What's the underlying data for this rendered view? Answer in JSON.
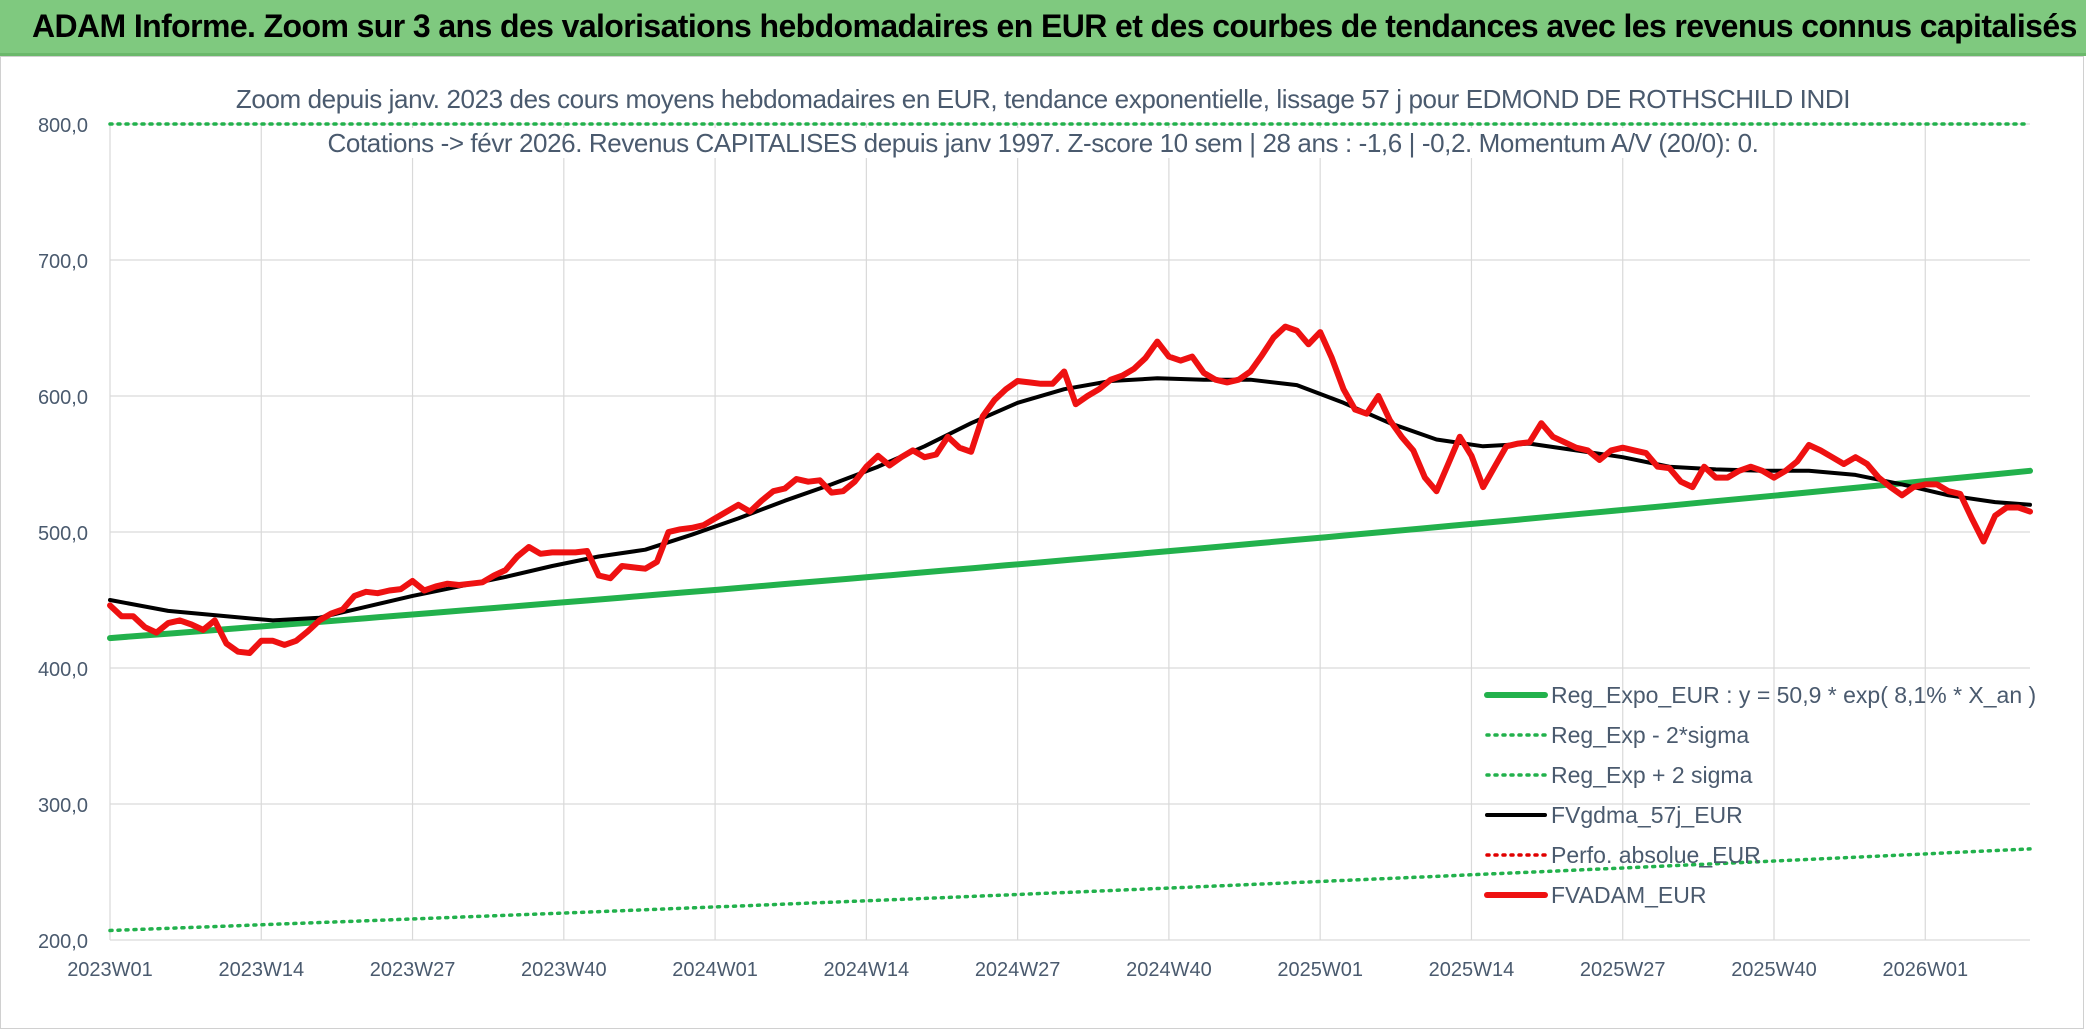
{
  "banner": {
    "title": "ADAM Informe. Zoom sur 3 ans des valorisations hebdomadaires en EUR et des courbes de tendances avec les revenus connus capitalisés",
    "color": "#7fc97f"
  },
  "chart_data": {
    "type": "line",
    "title": "Zoom depuis janv. 2023 des cours moyens hebdomadaires en EUR, tendance exponentielle, lissage 57 j pour EDMOND DE ROTHSCHILD INDI",
    "subtitle": "Cotations -> févr 2026. Revenus CAPITALISES depuis janv 1997. Z-score 10 sem | 28 ans : -1,6 | -0,2. Momentum A/V (20/0): 0.",
    "xlabel": "",
    "ylabel": "",
    "ylim": [
      200,
      800
    ],
    "yticks": [
      "200,0",
      "300,0",
      "400,0",
      "500,0",
      "600,0",
      "700,0",
      "800,0"
    ],
    "xticks": [
      "2023W01",
      "2023W14",
      "2023W27",
      "2023W40",
      "2024W01",
      "2024W14",
      "2024W27",
      "2024W40",
      "2025W01",
      "2025W14",
      "2025W27",
      "2025W40",
      "2026W01"
    ],
    "x_range_weeks": [
      0,
      165
    ],
    "grid": true,
    "legend_position": "bottom-right",
    "series": [
      {
        "name": "Reg_Expo_EUR : y = 50,9 * exp( 8,1% *  X_an )",
        "style": "solid-thick",
        "color": "#22b14c",
        "x": [
          0,
          165
        ],
        "y_start": 422,
        "y_end": 545,
        "kind": "exp"
      },
      {
        "name": "Reg_Exp - 2*sigma",
        "style": "dotted",
        "color": "#22b14c",
        "x": [
          0,
          165
        ],
        "y_start": 207,
        "y_end": 267,
        "kind": "exp"
      },
      {
        "name": "Reg_Exp + 2 sigma",
        "style": "dotted",
        "color": "#22b14c",
        "x": [
          0,
          165
        ],
        "y_start": 800,
        "y_end": 800,
        "kind": "offscale"
      },
      {
        "name": "FVgdma_57j_EUR",
        "style": "solid",
        "color": "#000000",
        "x": [
          0,
          5,
          10,
          14,
          18,
          22,
          26,
          30,
          34,
          38,
          42,
          46,
          50,
          54,
          58,
          62,
          66,
          70,
          74,
          78,
          82,
          86,
          90,
          94,
          98,
          102,
          106,
          110,
          114,
          118,
          122,
          126,
          130,
          134,
          138,
          142,
          146,
          150,
          154,
          158,
          162,
          165
        ],
        "y": [
          450,
          442,
          438,
          435,
          437,
          445,
          453,
          460,
          467,
          475,
          482,
          487,
          498,
          510,
          523,
          535,
          548,
          563,
          580,
          595,
          605,
          611,
          613,
          612,
          612,
          608,
          595,
          580,
          568,
          563,
          565,
          560,
          555,
          548,
          546,
          545,
          545,
          542,
          535,
          527,
          522,
          520
        ]
      },
      {
        "name": "Perfo. absolue_EUR",
        "style": "dotted",
        "color": "#e00000",
        "x": [],
        "y": []
      },
      {
        "name": "FVADAM_EUR",
        "style": "solid-thick",
        "color": "#ee1111",
        "x": [
          0,
          1,
          2,
          3,
          4,
          5,
          6,
          7,
          8,
          9,
          10,
          11,
          12,
          13,
          14,
          15,
          16,
          17,
          18,
          19,
          20,
          21,
          22,
          23,
          24,
          25,
          26,
          27,
          28,
          29,
          30,
          31,
          32,
          33,
          34,
          35,
          36,
          37,
          38,
          39,
          40,
          41,
          42,
          43,
          44,
          45,
          46,
          47,
          48,
          49,
          50,
          51,
          52,
          53,
          54,
          55,
          56,
          57,
          58,
          59,
          60,
          61,
          62,
          63,
          64,
          65,
          66,
          67,
          68,
          69,
          70,
          71,
          72,
          73,
          74,
          75,
          76,
          77,
          78,
          79,
          80,
          81,
          82,
          83,
          84,
          85,
          86,
          87,
          88,
          89,
          90,
          91,
          92,
          93,
          94,
          95,
          96,
          97,
          98,
          99,
          100,
          101,
          102,
          103,
          104,
          105,
          106,
          107,
          108,
          109,
          110,
          111,
          112,
          113,
          114,
          115,
          116,
          117,
          118,
          119,
          120,
          121,
          122,
          123,
          124,
          125,
          126,
          127,
          128,
          129,
          130,
          131,
          132,
          133,
          134,
          135,
          136,
          137,
          138,
          139,
          140,
          141,
          142,
          143,
          144,
          145,
          146,
          147,
          148,
          149,
          150,
          151,
          152,
          153,
          154,
          155,
          156,
          157,
          158,
          159,
          160,
          161,
          162,
          163,
          164,
          165
        ],
        "y": [
          446,
          438,
          438,
          430,
          426,
          433,
          435,
          432,
          428,
          435,
          418,
          412,
          411,
          420,
          420,
          417,
          420,
          427,
          435,
          440,
          443,
          453,
          456,
          455,
          457,
          458,
          464,
          457,
          460,
          462,
          461,
          462,
          463,
          468,
          472,
          482,
          489,
          484,
          485,
          485,
          485,
          486,
          468,
          466,
          475,
          474,
          473,
          478,
          500,
          502,
          503,
          505,
          510,
          515,
          520,
          515,
          523,
          530,
          532,
          539,
          537,
          538,
          529,
          530,
          537,
          548,
          556,
          549,
          555,
          560,
          555,
          557,
          570,
          562,
          559,
          585,
          597,
          605,
          611,
          610,
          609,
          609,
          618,
          594,
          600,
          605,
          612,
          615,
          620,
          628,
          640,
          629,
          626,
          629,
          617,
          612,
          610,
          612,
          618,
          630,
          643,
          651,
          648,
          638,
          647,
          628,
          605,
          590,
          587,
          600,
          582,
          570,
          560,
          540,
          530,
          550,
          570,
          556,
          533,
          548,
          563,
          565,
          566,
          580,
          570,
          566,
          562,
          560,
          553,
          560,
          562,
          560,
          558,
          548,
          547,
          537,
          533,
          548,
          540,
          540,
          545,
          548,
          545,
          540,
          545,
          552,
          564,
          560,
          555,
          550,
          555,
          550,
          540,
          533,
          527,
          533,
          535,
          535,
          530,
          528,
          510,
          493,
          512,
          518,
          518,
          515
        ]
      }
    ]
  }
}
